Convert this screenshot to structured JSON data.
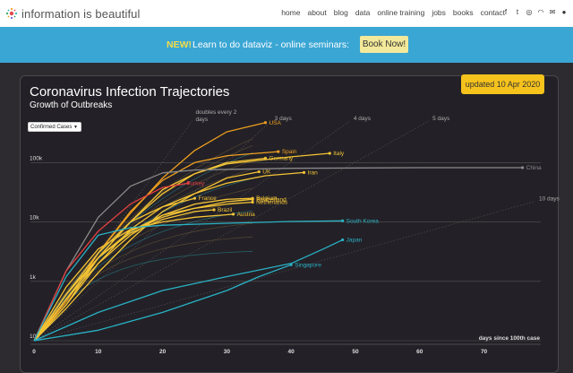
{
  "header": {
    "logo_text": "information is beautiful",
    "nav": [
      "home",
      "about",
      "blog",
      "data",
      "online training",
      "jobs",
      "books",
      "contact"
    ],
    "social_icons": [
      "facebook-icon",
      "twitter-icon",
      "instagram-icon",
      "rss-icon",
      "mail-icon",
      "user-icon"
    ]
  },
  "banner": {
    "new_label": "NEW!",
    "text": "Learn to do dataviz - online seminars:",
    "button": "Book Now!"
  },
  "panel": {
    "title": "Coronavirus Infection Trajectories",
    "subtitle": "Growth of Outbreaks",
    "updated": "updated 10 Apr 2020",
    "select_value": "Confirmed Cases"
  },
  "colors": {
    "background": "#232127",
    "highlight": "#f6c21c",
    "asia": "#29b1c4",
    "europe": "#f0c020"
  },
  "chart_data": {
    "type": "line",
    "xlabel": "days since 100th case",
    "ylabel": "",
    "x_ticks": [
      0,
      10,
      20,
      30,
      40,
      50,
      60,
      70
    ],
    "xlim": [
      0,
      78
    ],
    "y_ticks": [
      "100",
      "1k",
      "10k",
      "100k"
    ],
    "ylim": [
      100,
      500000
    ],
    "yscale": "log",
    "doubling_guides": [
      {
        "label": "doubles every 2 days",
        "days": 2
      },
      {
        "label": "3 days",
        "days": 3
      },
      {
        "label": "4 days",
        "days": 4
      },
      {
        "label": "5 days",
        "days": 5
      },
      {
        "label": "10 days",
        "days": 10
      }
    ],
    "series": [
      {
        "name": "USA",
        "color": "#f0a020",
        "points": [
          [
            0,
            100
          ],
          [
            5,
            450
          ],
          [
            10,
            3000
          ],
          [
            15,
            14000
          ],
          [
            20,
            55000
          ],
          [
            25,
            160000
          ],
          [
            30,
            330000
          ],
          [
            36,
            470000
          ]
        ]
      },
      {
        "name": "Spain",
        "color": "#f0a020",
        "points": [
          [
            0,
            100
          ],
          [
            5,
            600
          ],
          [
            10,
            3000
          ],
          [
            15,
            15000
          ],
          [
            20,
            50000
          ],
          [
            25,
            100000
          ],
          [
            30,
            130000
          ],
          [
            38,
            153000
          ]
        ]
      },
      {
        "name": "Germany",
        "color": "#f3c335",
        "points": [
          [
            0,
            100
          ],
          [
            5,
            500
          ],
          [
            10,
            2500
          ],
          [
            15,
            10000
          ],
          [
            20,
            30000
          ],
          [
            25,
            65000
          ],
          [
            30,
            100000
          ],
          [
            36,
            118000
          ]
        ]
      },
      {
        "name": "Italy",
        "color": "#f3c335",
        "points": [
          [
            0,
            100
          ],
          [
            5,
            400
          ],
          [
            10,
            2500
          ],
          [
            15,
            10000
          ],
          [
            20,
            35000
          ],
          [
            25,
            65000
          ],
          [
            30,
            95000
          ],
          [
            40,
            125000
          ],
          [
            46,
            143000
          ]
        ]
      },
      {
        "name": "China",
        "color": "#8a8a8a",
        "points": [
          [
            0,
            100
          ],
          [
            5,
            1500
          ],
          [
            10,
            12000
          ],
          [
            15,
            40000
          ],
          [
            20,
            67000
          ],
          [
            25,
            75000
          ],
          [
            40,
            80000
          ],
          [
            60,
            82000
          ],
          [
            76,
            82000
          ]
        ]
      },
      {
        "name": "UK",
        "color": "#f3c335",
        "points": [
          [
            0,
            100
          ],
          [
            5,
            350
          ],
          [
            10,
            1400
          ],
          [
            15,
            5000
          ],
          [
            20,
            15000
          ],
          [
            25,
            30000
          ],
          [
            30,
            55000
          ],
          [
            35,
            70000
          ]
        ]
      },
      {
        "name": "Iran",
        "color": "#f3c335",
        "points": [
          [
            0,
            100
          ],
          [
            5,
            600
          ],
          [
            10,
            3000
          ],
          [
            15,
            10000
          ],
          [
            20,
            18000
          ],
          [
            25,
            30000
          ],
          [
            30,
            45000
          ],
          [
            36,
            60000
          ],
          [
            42,
            68000
          ]
        ]
      },
      {
        "name": "Turkey",
        "color": "#e64040",
        "points": [
          [
            0,
            100
          ],
          [
            5,
            1500
          ],
          [
            10,
            7000
          ],
          [
            15,
            20000
          ],
          [
            20,
            38000
          ],
          [
            24,
            45000
          ]
        ]
      },
      {
        "name": "France",
        "color": "#f3c335",
        "points": [
          [
            0,
            100
          ],
          [
            5,
            400
          ],
          [
            10,
            2000
          ],
          [
            15,
            7500
          ],
          [
            20,
            18000
          ],
          [
            25,
            25000
          ]
        ]
      },
      {
        "name": "Switzerland",
        "color": "#f3c335",
        "points": [
          [
            0,
            100
          ],
          [
            5,
            600
          ],
          [
            10,
            2500
          ],
          [
            15,
            7000
          ],
          [
            20,
            13000
          ],
          [
            25,
            17000
          ],
          [
            30,
            22000
          ],
          [
            34,
            24000
          ]
        ]
      },
      {
        "name": "Belgium",
        "color": "#f3c335",
        "points": [
          [
            0,
            100
          ],
          [
            5,
            500
          ],
          [
            10,
            2000
          ],
          [
            15,
            6000
          ],
          [
            20,
            13000
          ],
          [
            25,
            20000
          ],
          [
            30,
            24000
          ],
          [
            34,
            25000
          ]
        ]
      },
      {
        "name": "Netherlands",
        "color": "#f3c335",
        "points": [
          [
            0,
            100
          ],
          [
            5,
            500
          ],
          [
            10,
            2500
          ],
          [
            15,
            7000
          ],
          [
            20,
            12000
          ],
          [
            25,
            17000
          ],
          [
            30,
            20000
          ],
          [
            34,
            21500
          ]
        ]
      },
      {
        "name": "Brazil",
        "color": "#f3c335",
        "points": [
          [
            0,
            100
          ],
          [
            5,
            600
          ],
          [
            10,
            2500
          ],
          [
            15,
            6500
          ],
          [
            20,
            11000
          ],
          [
            25,
            15000
          ],
          [
            28,
            16000
          ]
        ]
      },
      {
        "name": "Austria",
        "color": "#f3c335",
        "points": [
          [
            0,
            100
          ],
          [
            5,
            800
          ],
          [
            10,
            3500
          ],
          [
            15,
            7500
          ],
          [
            20,
            10000
          ],
          [
            25,
            12000
          ],
          [
            31,
            13500
          ]
        ]
      },
      {
        "name": "South Korea",
        "color": "#29b1c4",
        "points": [
          [
            0,
            100
          ],
          [
            5,
            1200
          ],
          [
            10,
            6000
          ],
          [
            15,
            8000
          ],
          [
            20,
            8800
          ],
          [
            30,
            9500
          ],
          [
            40,
            10200
          ],
          [
            48,
            10450
          ]
        ]
      },
      {
        "name": "Japan",
        "color": "#29b1c4",
        "points": [
          [
            0,
            100
          ],
          [
            10,
            300
          ],
          [
            20,
            700
          ],
          [
            30,
            1200
          ],
          [
            40,
            2000
          ],
          [
            45,
            3500
          ],
          [
            48,
            5000
          ]
        ]
      },
      {
        "name": "Singapore",
        "color": "#29b1c4",
        "points": [
          [
            0,
            100
          ],
          [
            10,
            150
          ],
          [
            20,
            300
          ],
          [
            30,
            700
          ],
          [
            35,
            1200
          ],
          [
            40,
            1900
          ]
        ]
      }
    ],
    "background_series_count": 12
  }
}
